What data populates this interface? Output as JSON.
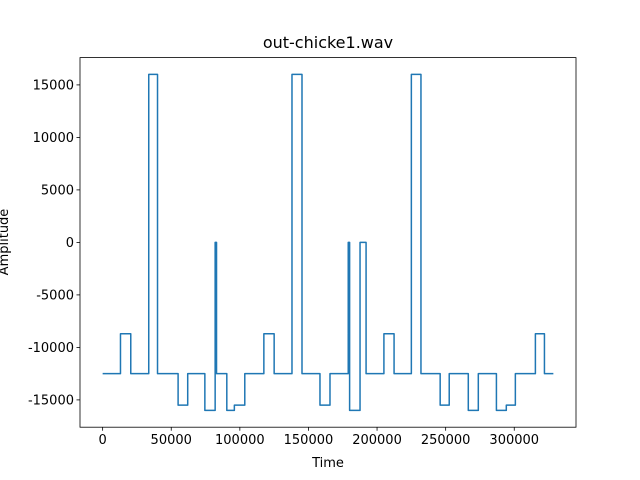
{
  "chart_data": {
    "type": "line",
    "title": "out-chicke1.wav",
    "x_label": "Time",
    "y_label": "Amplitude",
    "color": "#1f77b4",
    "x": [
      0,
      13000,
      13000,
      20500,
      20500,
      33600,
      33600,
      40000,
      40000,
      55000,
      55000,
      62000,
      62000,
      74500,
      74500,
      82000,
      82000,
      83000,
      83000,
      90500,
      90500,
      96000,
      96000,
      103600,
      103600,
      117500,
      117500,
      125000,
      125000,
      138000,
      138000,
      145300,
      145300,
      158400,
      158400,
      165700,
      165700,
      179000,
      179000,
      180000,
      180000,
      187600,
      187600,
      192000,
      192000,
      205000,
      205000,
      212400,
      212400,
      225000,
      225000,
      232000,
      232000,
      246000,
      246000,
      252600,
      252600,
      266500,
      266500,
      273800,
      273800,
      287000,
      287000,
      294200,
      294200,
      300800,
      300800,
      315400,
      315400,
      322000,
      322000,
      328500
    ],
    "values": [
      -12500,
      -12500,
      -8700,
      -8700,
      -12500,
      -12500,
      16000,
      16000,
      -12500,
      -12500,
      -15500,
      -15500,
      -12500,
      -12500,
      -16000,
      -16000,
      0,
      0,
      -12500,
      -12500,
      -16000,
      -16000,
      -15500,
      -15500,
      -12500,
      -12500,
      -8700,
      -8700,
      -12500,
      -12500,
      16000,
      16000,
      -12500,
      -12500,
      -15500,
      -15500,
      -12500,
      -12500,
      0,
      0,
      -16000,
      -16000,
      0,
      0,
      -12500,
      -12500,
      -8700,
      -8700,
      -12500,
      -12500,
      16000,
      16000,
      -12500,
      -12500,
      -15500,
      -15500,
      -12500,
      -12500,
      -16000,
      -16000,
      -12500,
      -12500,
      -16000,
      -16000,
      -15500,
      -15500,
      -12500,
      -12500,
      -8700,
      -8700,
      -12500,
      -12500
    ],
    "xlim": [
      -16500,
      345000
    ],
    "ylim": [
      -17600,
      17600
    ],
    "xticks": [
      0,
      50000,
      100000,
      150000,
      200000,
      250000,
      300000
    ],
    "yticks": [
      -15000,
      -10000,
      -5000,
      0,
      5000,
      10000,
      15000
    ]
  }
}
